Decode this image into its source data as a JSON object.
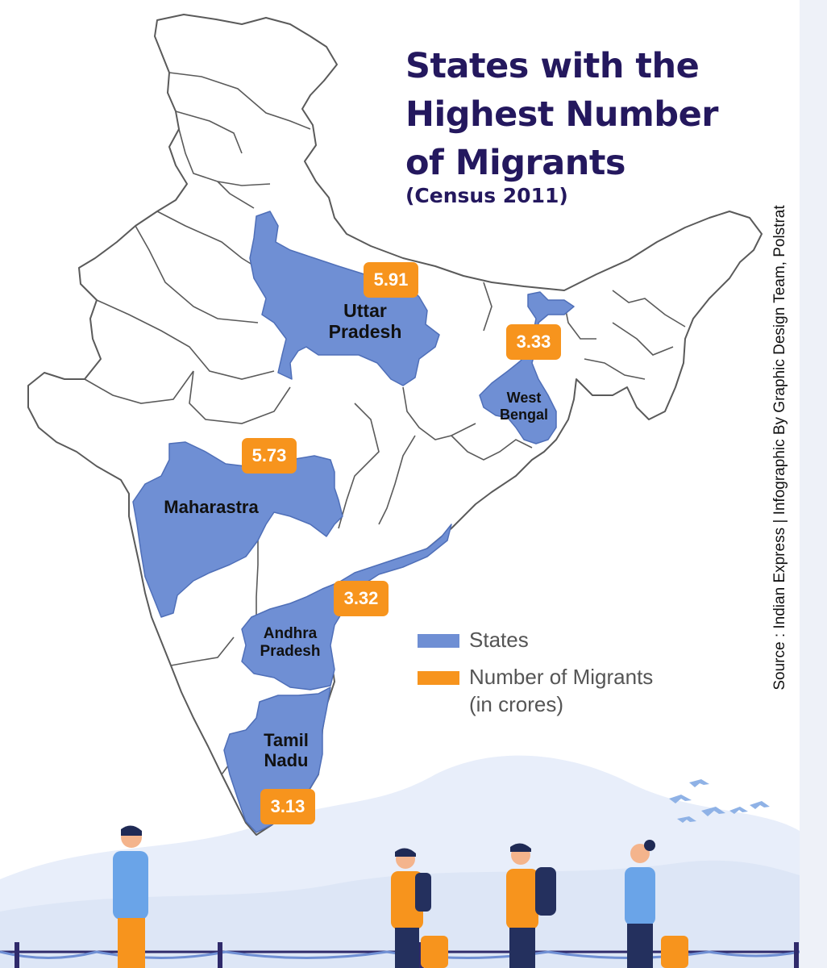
{
  "title": {
    "line1": "States with the",
    "line2": "Highest Number",
    "line3": "of Migrants"
  },
  "subtitle": "(Census 2011)",
  "source": "Source : Indian Express | Infographic By Graphic Design Team, Polstrat",
  "legend": {
    "states_label": "States",
    "migrants_line1": "Number of Migrants",
    "migrants_line2": "(in crores)"
  },
  "colors": {
    "state_fill": "#6f8fd4",
    "badge": "#f7941d",
    "title": "#24185e",
    "outline": "#5a5a5a"
  },
  "states": [
    {
      "name_line1": "Uttar",
      "name_line2": "Pradesh",
      "value": "5.91"
    },
    {
      "name_line1": "Maharastra",
      "name_line2": "",
      "value": "5.73"
    },
    {
      "name_line1": "West",
      "name_line2": "Bengal",
      "value": "3.33"
    },
    {
      "name_line1": "Andhra",
      "name_line2": "Pradesh",
      "value": "3.32"
    },
    {
      "name_line1": "Tamil",
      "name_line2": "Nadu",
      "value": "3.13"
    }
  ]
}
